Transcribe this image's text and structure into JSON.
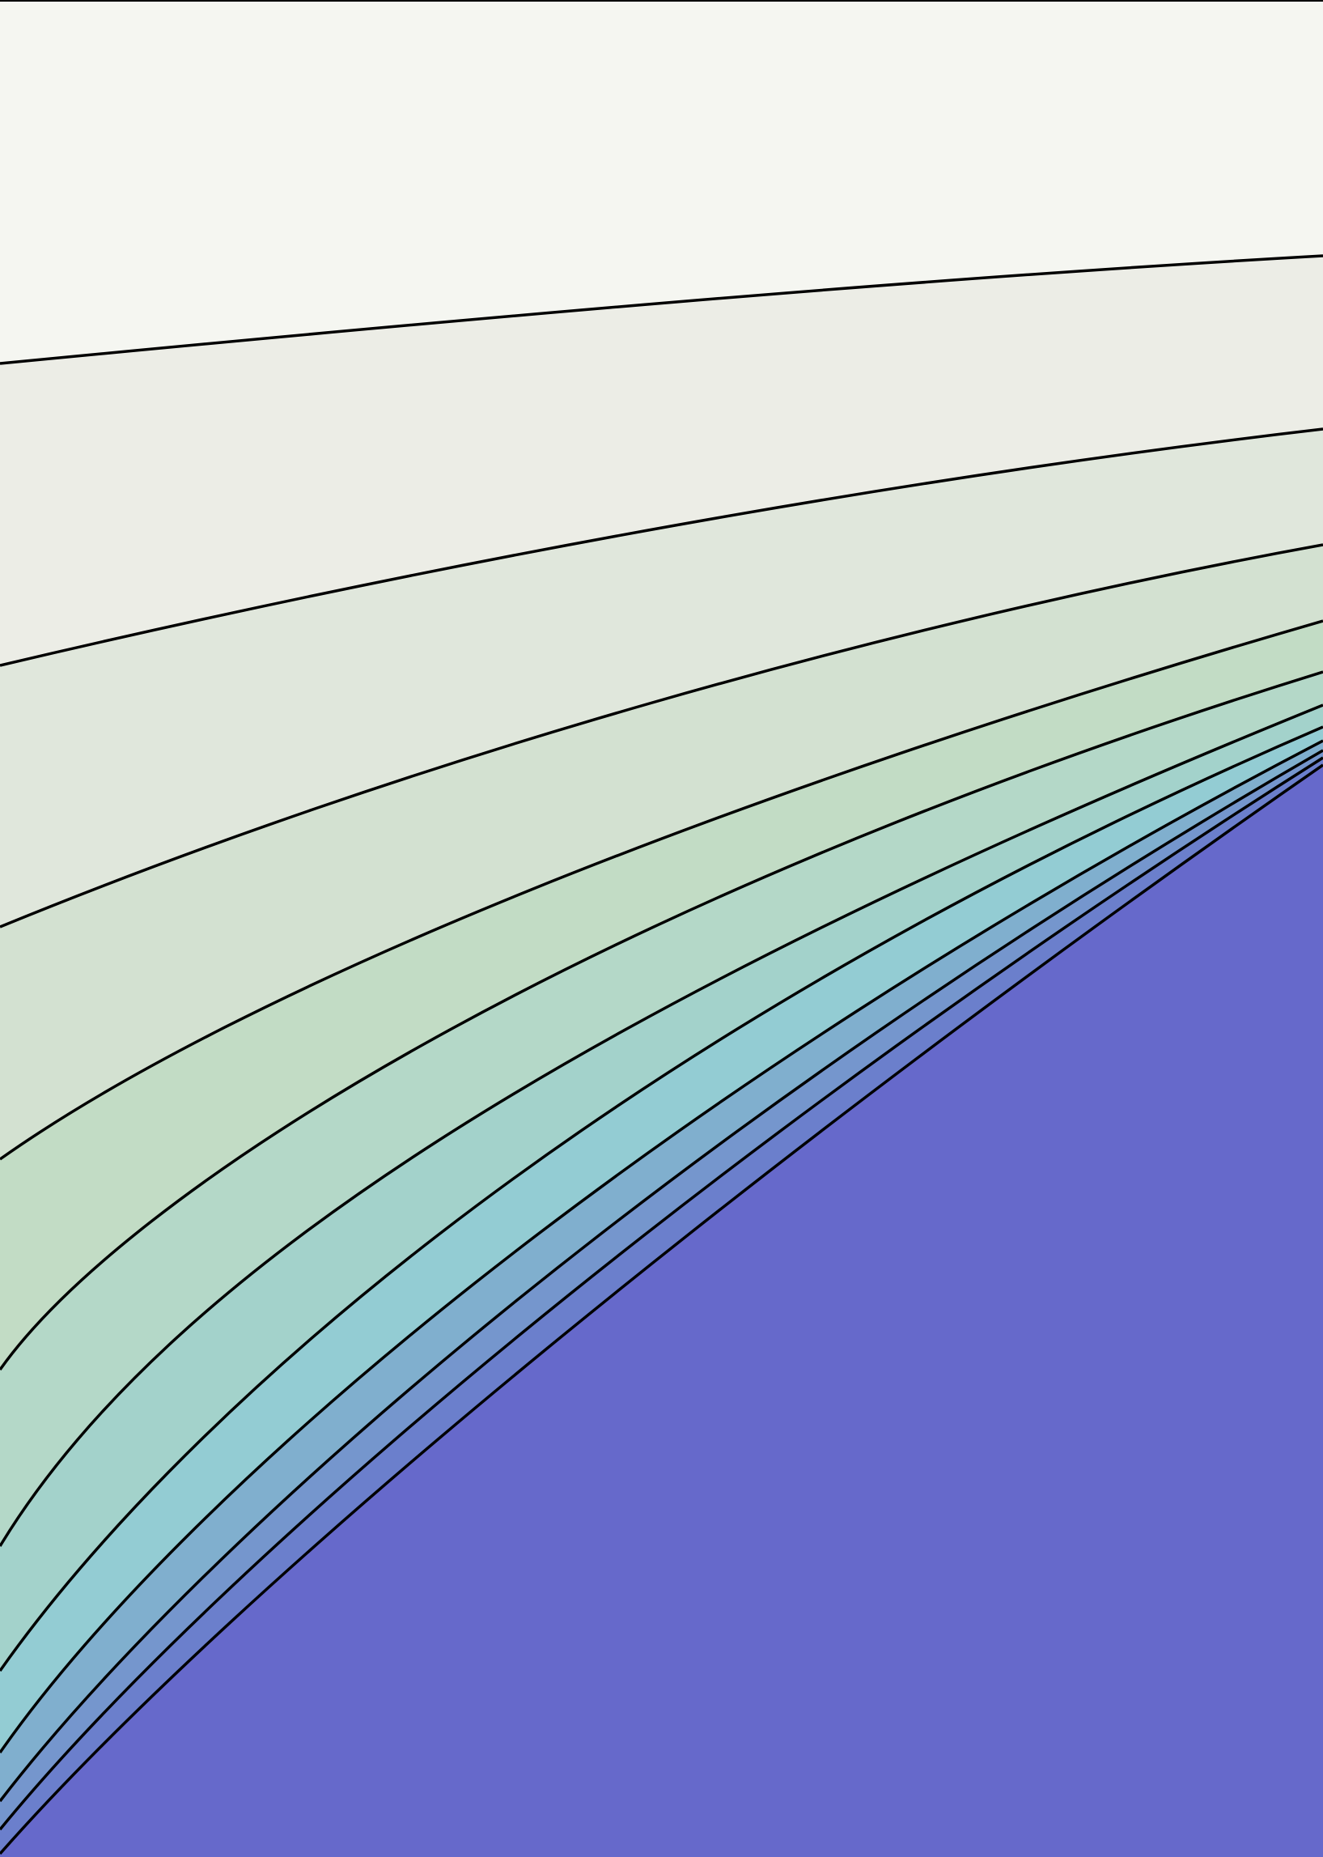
{
  "image": {
    "description_type": "abstract-contour-art",
    "border_color": "#000000",
    "contour_line_color": "#000000",
    "bands": [
      {
        "name": "band-1",
        "color": "#f5f6f1"
      },
      {
        "name": "band-2",
        "color": "#ecede6"
      },
      {
        "name": "band-3",
        "color": "#e0e7dc"
      },
      {
        "name": "band-4",
        "color": "#d3e1d1"
      },
      {
        "name": "band-5",
        "color": "#c2dcc5"
      },
      {
        "name": "band-6",
        "color": "#b4d8c8"
      },
      {
        "name": "band-7",
        "color": "#a3d2cb"
      },
      {
        "name": "band-8",
        "color": "#93ccd3"
      },
      {
        "name": "band-9",
        "color": "#80afce"
      },
      {
        "name": "band-10",
        "color": "#7596cd"
      },
      {
        "name": "band-11",
        "color": "#6b7fcc"
      },
      {
        "name": "band-12",
        "color": "#6669cb"
      }
    ]
  }
}
